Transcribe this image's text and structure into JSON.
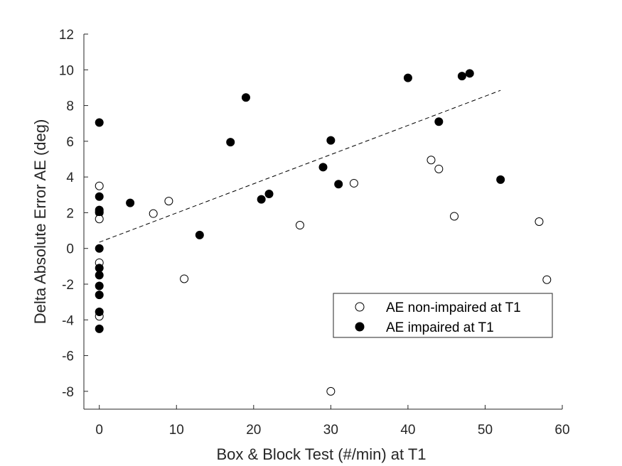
{
  "chart_data": {
    "type": "scatter",
    "xlabel": "Box & Block Test (#/min) at T1",
    "ylabel": "Delta Absolute Error AE (deg)",
    "xlim": [
      -2,
      60
    ],
    "ylim": [
      -9,
      12
    ],
    "xticks": [
      0,
      10,
      20,
      30,
      40,
      50,
      60
    ],
    "yticks": [
      -8,
      -6,
      -4,
      -2,
      0,
      2,
      4,
      6,
      8,
      10,
      12
    ],
    "grid": false,
    "legend_position": "lower-right",
    "series": [
      {
        "name": "AE non-impaired at T1",
        "marker": "open-circle",
        "color": "#000000",
        "points": [
          [
            0,
            3.5
          ],
          [
            0,
            2.0
          ],
          [
            0,
            1.65
          ],
          [
            0,
            -0.8
          ],
          [
            0,
            -3.8
          ],
          [
            7,
            1.95
          ],
          [
            9,
            2.65
          ],
          [
            11,
            -1.7
          ],
          [
            26,
            1.3
          ],
          [
            30,
            -8.0
          ],
          [
            33,
            3.65
          ],
          [
            43,
            4.95
          ],
          [
            44,
            4.45
          ],
          [
            46,
            1.8
          ],
          [
            57,
            1.5
          ],
          [
            58,
            -1.75
          ]
        ]
      },
      {
        "name": "AE impaired at T1",
        "marker": "filled-circle",
        "color": "#000000",
        "points": [
          [
            0,
            7.05
          ],
          [
            0,
            2.9
          ],
          [
            0,
            2.15
          ],
          [
            0,
            2.05
          ],
          [
            0,
            0.0
          ],
          [
            0,
            -1.1
          ],
          [
            0,
            -1.5
          ],
          [
            0,
            -2.1
          ],
          [
            0,
            -2.6
          ],
          [
            0,
            -3.55
          ],
          [
            0,
            -4.5
          ],
          [
            4,
            2.55
          ],
          [
            13,
            0.75
          ],
          [
            17,
            5.95
          ],
          [
            19,
            8.45
          ],
          [
            21,
            2.75
          ],
          [
            22,
            3.05
          ],
          [
            29,
            4.55
          ],
          [
            30,
            6.05
          ],
          [
            31,
            3.6
          ],
          [
            40,
            9.55
          ],
          [
            44,
            7.1
          ],
          [
            47,
            9.65
          ],
          [
            48,
            9.8
          ],
          [
            52,
            3.85
          ]
        ]
      }
    ],
    "trendline": {
      "style": "dashed",
      "color": "#000000",
      "x": [
        0,
        52
      ],
      "y": [
        0.35,
        8.85
      ]
    }
  }
}
